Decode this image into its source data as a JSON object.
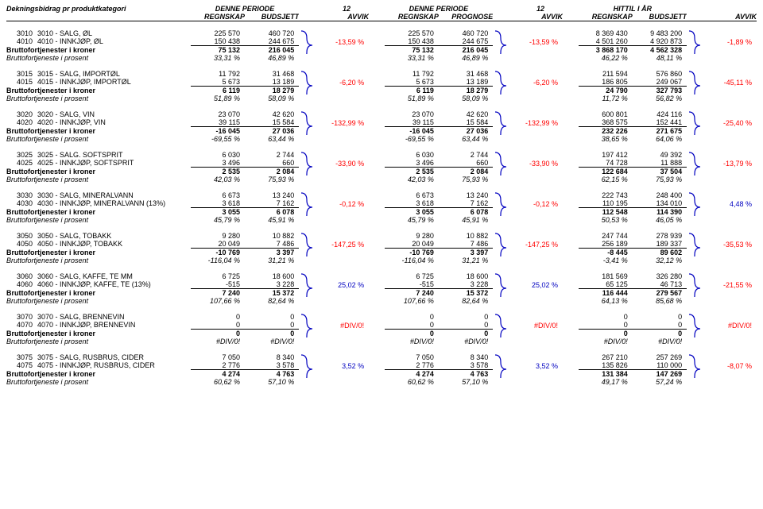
{
  "title": "Dekningsbidrag pr produktkategori",
  "periods": [
    {
      "title": "DENNE PERIODE",
      "month": "12",
      "cols": [
        "REGNSKAP",
        "BUDSJETT",
        "AVVIK"
      ]
    },
    {
      "title": "DENNE PERIODE",
      "month": "12",
      "cols": [
        "REGNSKAP",
        "PROGNOSE",
        "AVVIK"
      ]
    },
    {
      "title": "HITTIL I ÅR",
      "month": "",
      "cols": [
        "REGNSKAP",
        "BUDSJETT",
        "AVVIK"
      ]
    }
  ],
  "brace_color": "#0000c0",
  "groups": [
    {
      "rows": [
        {
          "code": "3010",
          "name": "3010 - SALG, ØL",
          "p": [
            [
              "225 570",
              "460 720"
            ],
            [
              "225 570",
              "460 720"
            ],
            [
              "8 369 430",
              "9 483 200"
            ]
          ]
        },
        {
          "code": "4010",
          "name": "4010 - INNKJØP, ØL",
          "p": [
            [
              "150 438",
              "244 675"
            ],
            [
              "150 438",
              "244 675"
            ],
            [
              "4 501 260",
              "4 920 873"
            ]
          ]
        }
      ],
      "sum": {
        "label": "Bruttofortjenester i kroner",
        "p": [
          [
            "75 132",
            "216 045"
          ],
          [
            "75 132",
            "216 045"
          ],
          [
            "3 868 170",
            "4 562 328"
          ]
        ]
      },
      "pct": {
        "label": "Bruttofortjeneste i prosent",
        "p": [
          [
            "33,31 %",
            "46,89 %"
          ],
          [
            "33,31 %",
            "46,89 %"
          ],
          [
            "46,22 %",
            "48,11 %"
          ]
        ]
      },
      "avvik": [
        "-13,59 %",
        "-13,59 %",
        "-1,89 %"
      ],
      "av_neg": [
        true,
        true,
        true
      ]
    },
    {
      "rows": [
        {
          "code": "3015",
          "name": "3015 - SALG, IMPORTØL",
          "p": [
            [
              "11 792",
              "31 468"
            ],
            [
              "11 792",
              "31 468"
            ],
            [
              "211 594",
              "576 860"
            ]
          ]
        },
        {
          "code": "4015",
          "name": "4015 - INNKJØP, IMPORTØL",
          "p": [
            [
              "5 673",
              "13 189"
            ],
            [
              "5 673",
              "13 189"
            ],
            [
              "186 805",
              "249 067"
            ]
          ]
        }
      ],
      "sum": {
        "label": "Bruttofortjenester i kroner",
        "p": [
          [
            "6 119",
            "18 279"
          ],
          [
            "6 119",
            "18 279"
          ],
          [
            "24 790",
            "327 793"
          ]
        ]
      },
      "pct": {
        "label": "Bruttofortjeneste i prosent",
        "p": [
          [
            "51,89 %",
            "58,09 %"
          ],
          [
            "51,89 %",
            "58,09 %"
          ],
          [
            "11,72 %",
            "56,82 %"
          ]
        ]
      },
      "avvik": [
        "-6,20 %",
        "-6,20 %",
        "-45,11 %"
      ],
      "av_neg": [
        true,
        true,
        true
      ]
    },
    {
      "rows": [
        {
          "code": "3020",
          "name": "3020 - SALG, VIN",
          "p": [
            [
              "23 070",
              "42 620"
            ],
            [
              "23 070",
              "42 620"
            ],
            [
              "600 801",
              "424 116"
            ]
          ]
        },
        {
          "code": "4020",
          "name": "4020 - INNKJØP, VIN",
          "p": [
            [
              "39 115",
              "15 584"
            ],
            [
              "39 115",
              "15 584"
            ],
            [
              "368 575",
              "152 441"
            ]
          ]
        }
      ],
      "sum": {
        "label": "Bruttofortjenester i kroner",
        "p": [
          [
            "-16 045",
            "27 036"
          ],
          [
            "-16 045",
            "27 036"
          ],
          [
            "232 226",
            "271 675"
          ]
        ]
      },
      "pct": {
        "label": "Bruttofortjeneste i prosent",
        "p": [
          [
            "-69,55 %",
            "63,44 %"
          ],
          [
            "-69,55 %",
            "63,44 %"
          ],
          [
            "38,65 %",
            "64,06 %"
          ]
        ]
      },
      "avvik": [
        "-132,99 %",
        "-132,99 %",
        "-25,40 %"
      ],
      "av_neg": [
        true,
        true,
        true
      ]
    },
    {
      "rows": [
        {
          "code": "3025",
          "name": "3025 - SALG. SOFTSPRIT",
          "p": [
            [
              "6 030",
              "2 744"
            ],
            [
              "6 030",
              "2 744"
            ],
            [
              "197 412",
              "49 392"
            ]
          ]
        },
        {
          "code": "4025",
          "name": "4025 - INNKJØP, SOFTSPRIT",
          "p": [
            [
              "3 496",
              "660"
            ],
            [
              "3 496",
              "660"
            ],
            [
              "74 728",
              "11 888"
            ]
          ]
        }
      ],
      "sum": {
        "label": "Bruttofortjenester i kroner",
        "p": [
          [
            "2 535",
            "2 084"
          ],
          [
            "2 535",
            "2 084"
          ],
          [
            "122 684",
            "37 504"
          ]
        ]
      },
      "pct": {
        "label": "Bruttofortjeneste i prosent",
        "p": [
          [
            "42,03 %",
            "75,93 %"
          ],
          [
            "42,03 %",
            "75,93 %"
          ],
          [
            "62,15 %",
            "75,93 %"
          ]
        ]
      },
      "avvik": [
        "-33,90 %",
        "-33,90 %",
        "-13,79 %"
      ],
      "av_neg": [
        true,
        true,
        true
      ]
    },
    {
      "rows": [
        {
          "code": "3030",
          "name": "3030 - SALG, MINERALVANN",
          "p": [
            [
              "6 673",
              "13 240"
            ],
            [
              "6 673",
              "13 240"
            ],
            [
              "222 743",
              "248 400"
            ]
          ]
        },
        {
          "code": "4030",
          "name": "4030 - INNKJØP, MINERALVANN (13%)",
          "p": [
            [
              "3 618",
              "7 162"
            ],
            [
              "3 618",
              "7 162"
            ],
            [
              "110 195",
              "134 010"
            ]
          ]
        }
      ],
      "sum": {
        "label": "Bruttofortjenester i kroner",
        "p": [
          [
            "3 055",
            "6 078"
          ],
          [
            "3 055",
            "6 078"
          ],
          [
            "112 548",
            "114 390"
          ]
        ]
      },
      "pct": {
        "label": "Bruttofortjeneste i prosent",
        "p": [
          [
            "45,79 %",
            "45,91 %"
          ],
          [
            "45,79 %",
            "45,91 %"
          ],
          [
            "50,53 %",
            "46,05 %"
          ]
        ]
      },
      "avvik": [
        "-0,12 %",
        "-0,12 %",
        "4,48 %"
      ],
      "av_neg": [
        true,
        true,
        false
      ]
    },
    {
      "rows": [
        {
          "code": "3050",
          "name": "3050 - SALG, TOBAKK",
          "p": [
            [
              "9 280",
              "10 882"
            ],
            [
              "9 280",
              "10 882"
            ],
            [
              "247 744",
              "278 939"
            ]
          ]
        },
        {
          "code": "4050",
          "name": "4050 - INNKJØP, TOBAKK",
          "p": [
            [
              "20 049",
              "7 486"
            ],
            [
              "20 049",
              "7 486"
            ],
            [
              "256 189",
              "189 337"
            ]
          ]
        }
      ],
      "sum": {
        "label": "Bruttofortjenester i kroner",
        "p": [
          [
            "-10 769",
            "3 397"
          ],
          [
            "-10 769",
            "3 397"
          ],
          [
            "-8 445",
            "89 602"
          ]
        ]
      },
      "pct": {
        "label": "Bruttofortjeneste i prosent",
        "p": [
          [
            "-116,04 %",
            "31,21 %"
          ],
          [
            "-116,04 %",
            "31,21 %"
          ],
          [
            "-3,41 %",
            "32,12 %"
          ]
        ]
      },
      "avvik": [
        "-147,25 %",
        "-147,25 %",
        "-35,53 %"
      ],
      "av_neg": [
        true,
        true,
        true
      ]
    },
    {
      "rows": [
        {
          "code": "3060",
          "name": "3060 - SALG, KAFFE, TE MM",
          "p": [
            [
              "6 725",
              "18 600"
            ],
            [
              "6 725",
              "18 600"
            ],
            [
              "181 569",
              "326 280"
            ]
          ]
        },
        {
          "code": "4060",
          "name": "4060 - INNKJØP, KAFFE, TE (13%)",
          "p": [
            [
              "-515",
              "3 228"
            ],
            [
              "-515",
              "3 228"
            ],
            [
              "65 125",
              "46 713"
            ]
          ]
        }
      ],
      "sum": {
        "label": "Bruttofortjenester i kroner",
        "p": [
          [
            "7 240",
            "15 372"
          ],
          [
            "7 240",
            "15 372"
          ],
          [
            "116 444",
            "279 567"
          ]
        ]
      },
      "pct": {
        "label": "Bruttofortjeneste i prosent",
        "p": [
          [
            "107,66 %",
            "82,64 %"
          ],
          [
            "107,66 %",
            "82,64 %"
          ],
          [
            "64,13 %",
            "85,68 %"
          ]
        ]
      },
      "avvik": [
        "25,02 %",
        "25,02 %",
        "-21,55 %"
      ],
      "av_neg": [
        false,
        false,
        true
      ]
    },
    {
      "rows": [
        {
          "code": "3070",
          "name": "3070 - SALG, BRENNEVIN",
          "p": [
            [
              "0",
              "0"
            ],
            [
              "0",
              "0"
            ],
            [
              "0",
              "0"
            ]
          ]
        },
        {
          "code": "4070",
          "name": "4070 - INNKJØP, BRENNEVIN",
          "p": [
            [
              "0",
              "0"
            ],
            [
              "0",
              "0"
            ],
            [
              "0",
              "0"
            ]
          ]
        }
      ],
      "sum": {
        "label": "Bruttofortjenester i kroner",
        "p": [
          [
            "0",
            "0"
          ],
          [
            "0",
            "0"
          ],
          [
            "0",
            "0"
          ]
        ]
      },
      "pct": {
        "label": "Bruttofortjeneste i prosent",
        "p": [
          [
            "#DIV/0!",
            "#DIV/0!"
          ],
          [
            "#DIV/0!",
            "#DIV/0!"
          ],
          [
            "#DIV/0!",
            "#DIV/0!"
          ]
        ]
      },
      "avvik": [
        "#DIV/0!",
        "#DIV/0!",
        "#DIV/0!"
      ],
      "av_neg": [
        true,
        true,
        true
      ]
    },
    {
      "rows": [
        {
          "code": "3075",
          "name": "3075 - SALG, RUSBRUS, CIDER",
          "p": [
            [
              "7 050",
              "8 340"
            ],
            [
              "7 050",
              "8 340"
            ],
            [
              "267 210",
              "257 269"
            ]
          ]
        },
        {
          "code": "4075",
          "name": "4075 - INNKJØP, RUSBRUS, CIDER",
          "p": [
            [
              "2 776",
              "3 578"
            ],
            [
              "2 776",
              "3 578"
            ],
            [
              "135 826",
              "110 000"
            ]
          ]
        }
      ],
      "sum": {
        "label": "Bruttofortjenester i kroner",
        "p": [
          [
            "4 274",
            "4 763"
          ],
          [
            "4 274",
            "4 763"
          ],
          [
            "131 384",
            "147 269"
          ]
        ]
      },
      "pct": {
        "label": "Bruttofortjeneste i prosent",
        "p": [
          [
            "60,62 %",
            "57,10 %"
          ],
          [
            "60,62 %",
            "57,10 %"
          ],
          [
            "49,17 %",
            "57,24 %"
          ]
        ]
      },
      "avvik": [
        "3,52 %",
        "3,52 %",
        "-8,07 %"
      ],
      "av_neg": [
        false,
        false,
        true
      ]
    }
  ]
}
